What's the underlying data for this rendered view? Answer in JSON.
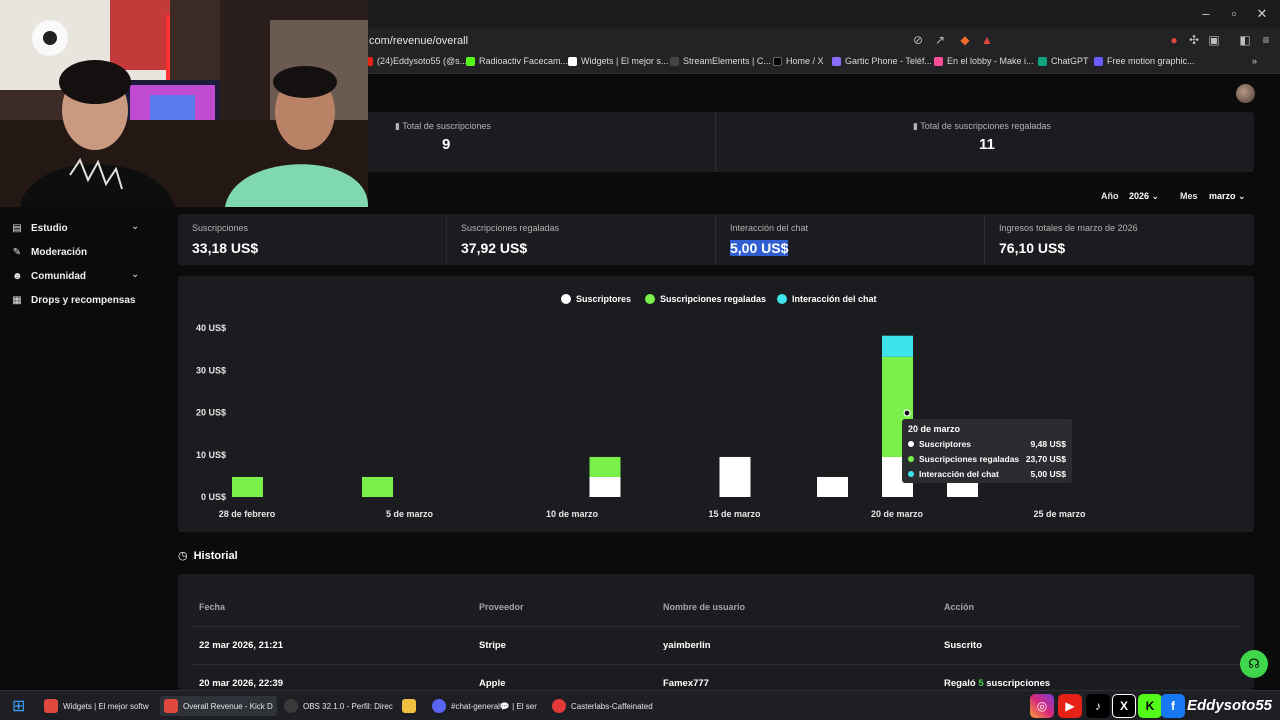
{
  "browser": {
    "url": "com/revenue/overall",
    "bookmarks": [
      {
        "label": "(24)Eddysoto55 (@s...",
        "color": "#e62117"
      },
      {
        "label": "Radioactiv Facecam...",
        "color": "#53fc18"
      },
      {
        "label": "Widgets | El mejor s...",
        "color": "#ffffff"
      },
      {
        "label": "StreamElements | C...",
        "color": "#1a1a1a"
      },
      {
        "label": "Home / X",
        "color": "#000000"
      },
      {
        "label": "Gartic Phone - Teléf...",
        "color": "#8a6cff"
      },
      {
        "label": "En el lobby - Make i...",
        "color": "#ff4f9a"
      },
      {
        "label": "ChatGPT",
        "color": "#10a37f"
      },
      {
        "label": "Free motion graphic...",
        "color": "#6a5cff"
      }
    ]
  },
  "summary_top": [
    {
      "label": "Total de suscripciones",
      "value": "9"
    },
    {
      "label": "Total de suscripciones regaladas",
      "value": "11"
    }
  ],
  "sidebar": {
    "items": [
      {
        "label": "Estudio",
        "icon": "studio-icon",
        "chevron": true
      },
      {
        "label": "Moderación",
        "icon": "wrench-icon",
        "chevron": false
      },
      {
        "label": "Comunidad",
        "icon": "community-icon",
        "chevron": true
      },
      {
        "label": "Drops y recompensas",
        "icon": "gift-icon",
        "chevron": false
      }
    ]
  },
  "filters": {
    "year_label": "Año",
    "year_value": "2026",
    "month_label": "Mes",
    "month_value": "marzo"
  },
  "metrics": [
    {
      "label": "Suscripciones",
      "value": "33,18 US$"
    },
    {
      "label": "Suscripciones regaladas",
      "value": "37,92 US$"
    },
    {
      "label": "Interacción del chat",
      "value": "5,00 US$"
    },
    {
      "label": "Ingresos totales de marzo de 2026",
      "value": "76,10 US$"
    }
  ],
  "colors": {
    "subscribers": "#ffffff",
    "gifted": "#7cf04a",
    "chat": "#3fe3ea",
    "accent": "#3fd64b"
  },
  "chart_data": {
    "type": "bar",
    "stacked": true,
    "ylim": [
      0,
      40
    ],
    "y_ticks": [
      {
        "value": 0,
        "label": "0 US$"
      },
      {
        "value": 10,
        "label": "10 US$"
      },
      {
        "value": 20,
        "label": "20 US$"
      },
      {
        "value": 30,
        "label": "30 US$"
      },
      {
        "value": 40,
        "label": "40 US$"
      }
    ],
    "x_ticks": [
      "28 de febrero",
      "5 de marzo",
      "10 de marzo",
      "15 de marzo",
      "20 de marzo",
      "25 de marzo"
    ],
    "legend_position": "top-center",
    "series": [
      {
        "name": "Suscriptores",
        "color": "#ffffff"
      },
      {
        "name": "Suscripciones regaladas",
        "color": "#7cf04a"
      },
      {
        "name": "Interacción del chat",
        "color": "#3fe3ea"
      }
    ],
    "bars": [
      {
        "date": "2026-02-28",
        "values": [
          0,
          4.74,
          0
        ]
      },
      {
        "date": "2026-03-04",
        "values": [
          0,
          4.74,
          0
        ]
      },
      {
        "date": "2026-03-11",
        "values": [
          4.74,
          4.74,
          0
        ]
      },
      {
        "date": "2026-03-15",
        "values": [
          9.48,
          0,
          0
        ]
      },
      {
        "date": "2026-03-18",
        "values": [
          4.74,
          0,
          0
        ]
      },
      {
        "date": "2026-03-20",
        "values": [
          9.48,
          23.7,
          5.0
        ]
      },
      {
        "date": "2026-03-22",
        "values": [
          4.74,
          0,
          0
        ]
      }
    ],
    "tooltip": {
      "title": "20 de marzo",
      "rows": [
        {
          "name": "Suscriptores",
          "value": "9,48 US$"
        },
        {
          "name": "Suscripciones regaladas",
          "value": "23,70 US$"
        },
        {
          "name": "Interacción del chat",
          "value": "5,00 US$"
        }
      ]
    }
  },
  "history": {
    "title": "Historial",
    "columns": [
      "Fecha",
      "Proveedor",
      "Nombre de usuario",
      "Acción"
    ],
    "rows": [
      {
        "date": "22 mar 2026, 21:21",
        "provider": "Stripe",
        "user": "yaimberlin",
        "action": "Suscrito",
        "action_count": ""
      },
      {
        "date": "20 mar 2026, 22:39",
        "provider": "Apple",
        "user": "Famex777",
        "action": "suscripciones",
        "action_count": "5",
        "action_prefix": "Regaló"
      }
    ]
  },
  "taskbar": {
    "tasks": [
      {
        "label": "Widgets | El mejor softw",
        "color": "#e0483e"
      },
      {
        "label": "Overall Revenue - Kick D",
        "color": "#e0483e"
      },
      {
        "label": "OBS 32.1.0 - Perfil: Direc",
        "color": "#3a3a3a"
      },
      {
        "label": "",
        "color": "#f0c040"
      },
      {
        "label": "#chat-general💬 | El ser",
        "color": "#5865f2"
      },
      {
        "label": "Casterlabs-Caffeinated",
        "color": "#e03a3a"
      }
    ],
    "channel_name": "Eddysoto55"
  }
}
